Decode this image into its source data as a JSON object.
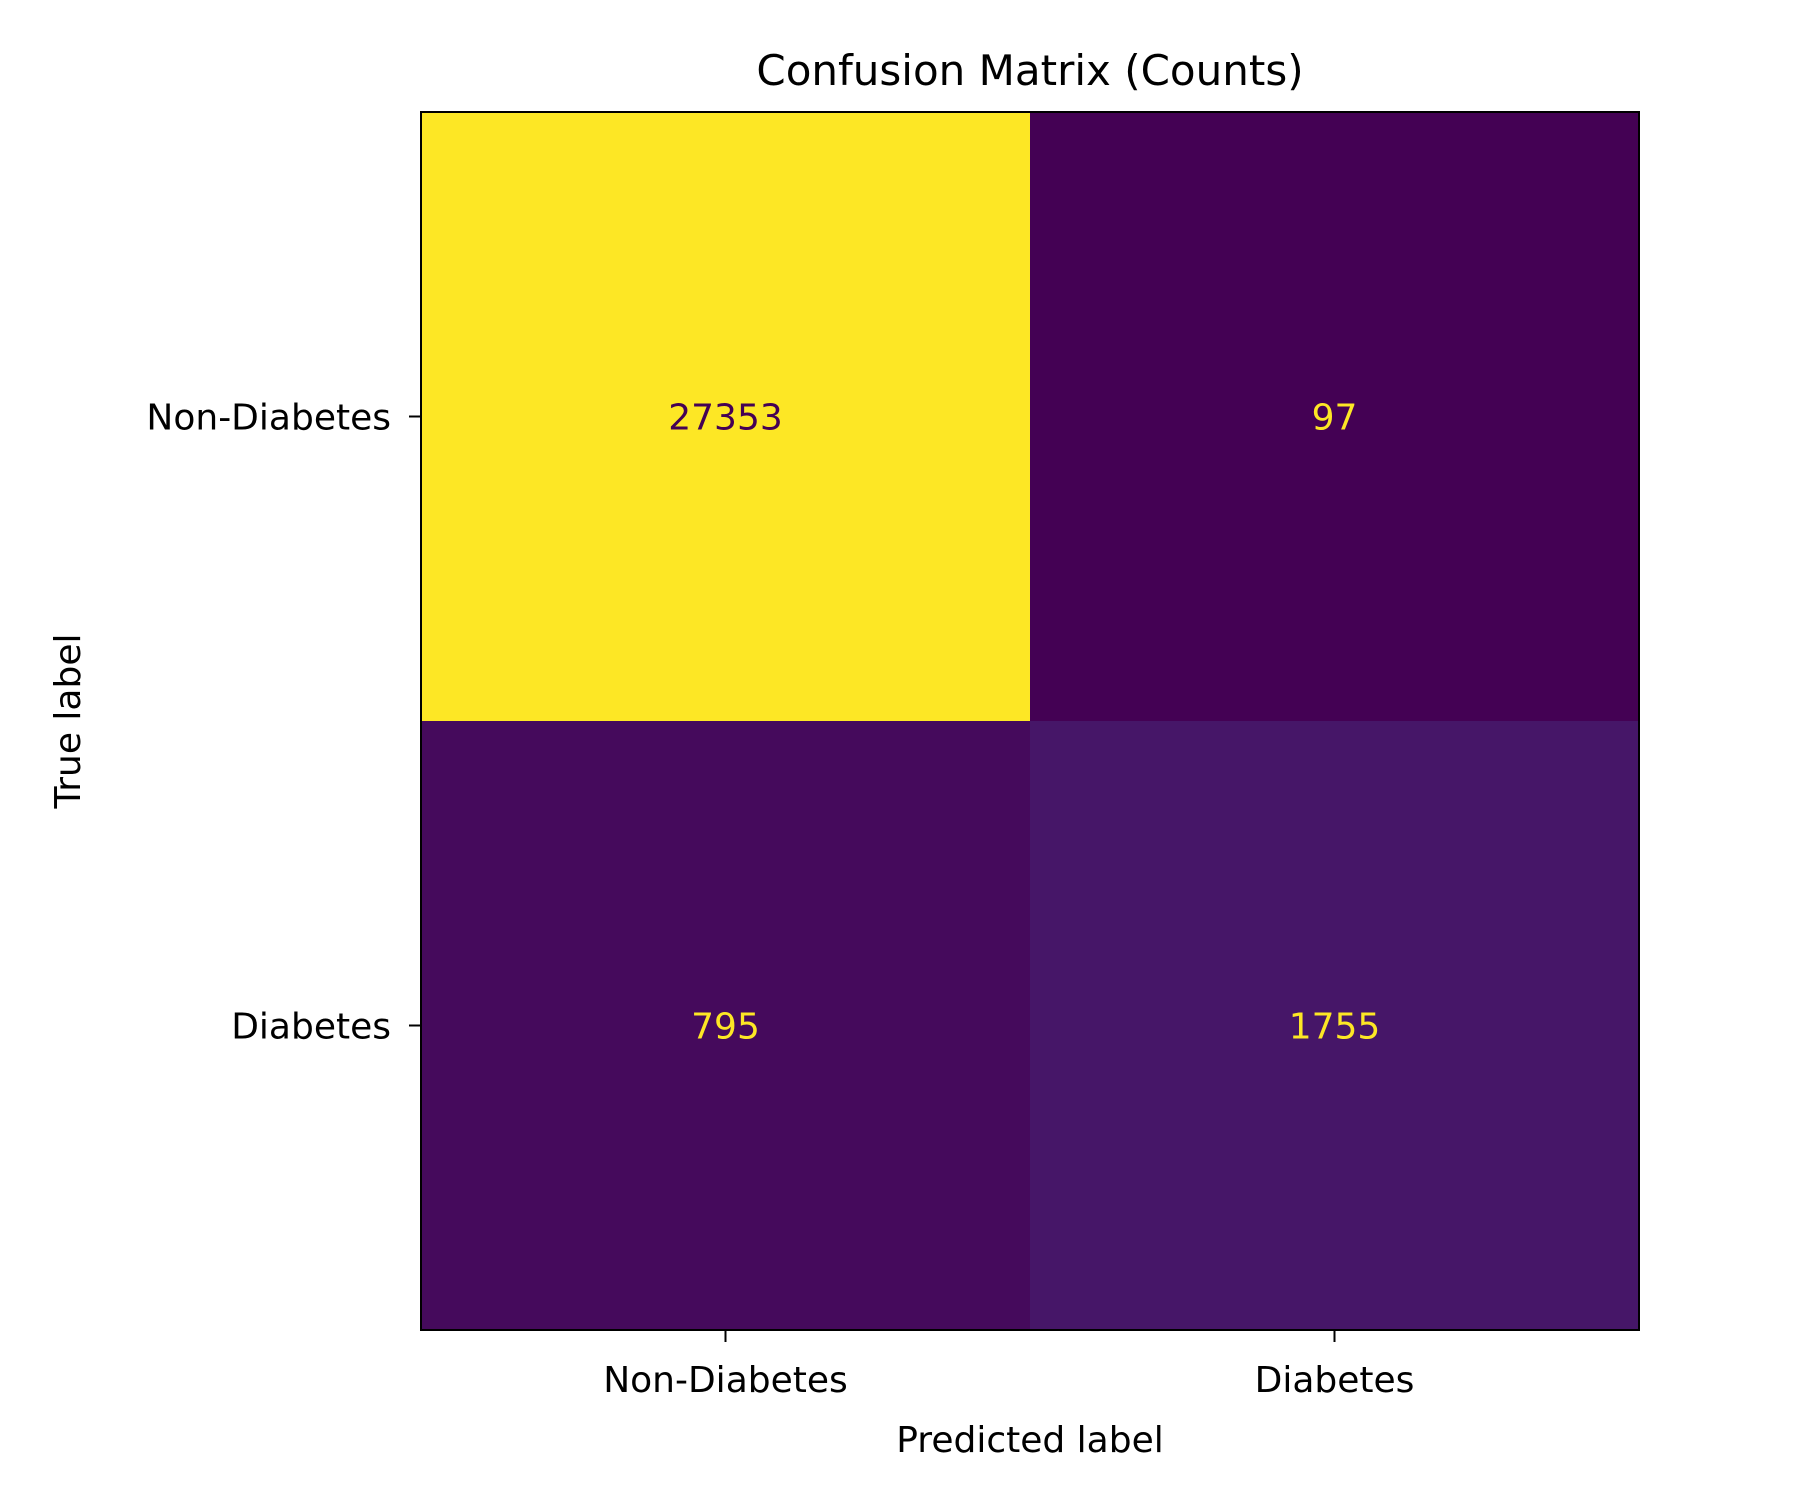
{
  "chart_data": {
    "type": "heatmap",
    "title": "Confusion Matrix (Counts)",
    "xlabel": "Predicted label",
    "ylabel": "True label",
    "x_categories": [
      "Non-Diabetes",
      "Diabetes"
    ],
    "y_categories": [
      "Non-Diabetes",
      "Diabetes"
    ],
    "values": [
      [
        27353,
        97
      ],
      [
        795,
        1755
      ]
    ],
    "colormap": "viridis",
    "colorbar": false,
    "grid": false
  }
}
